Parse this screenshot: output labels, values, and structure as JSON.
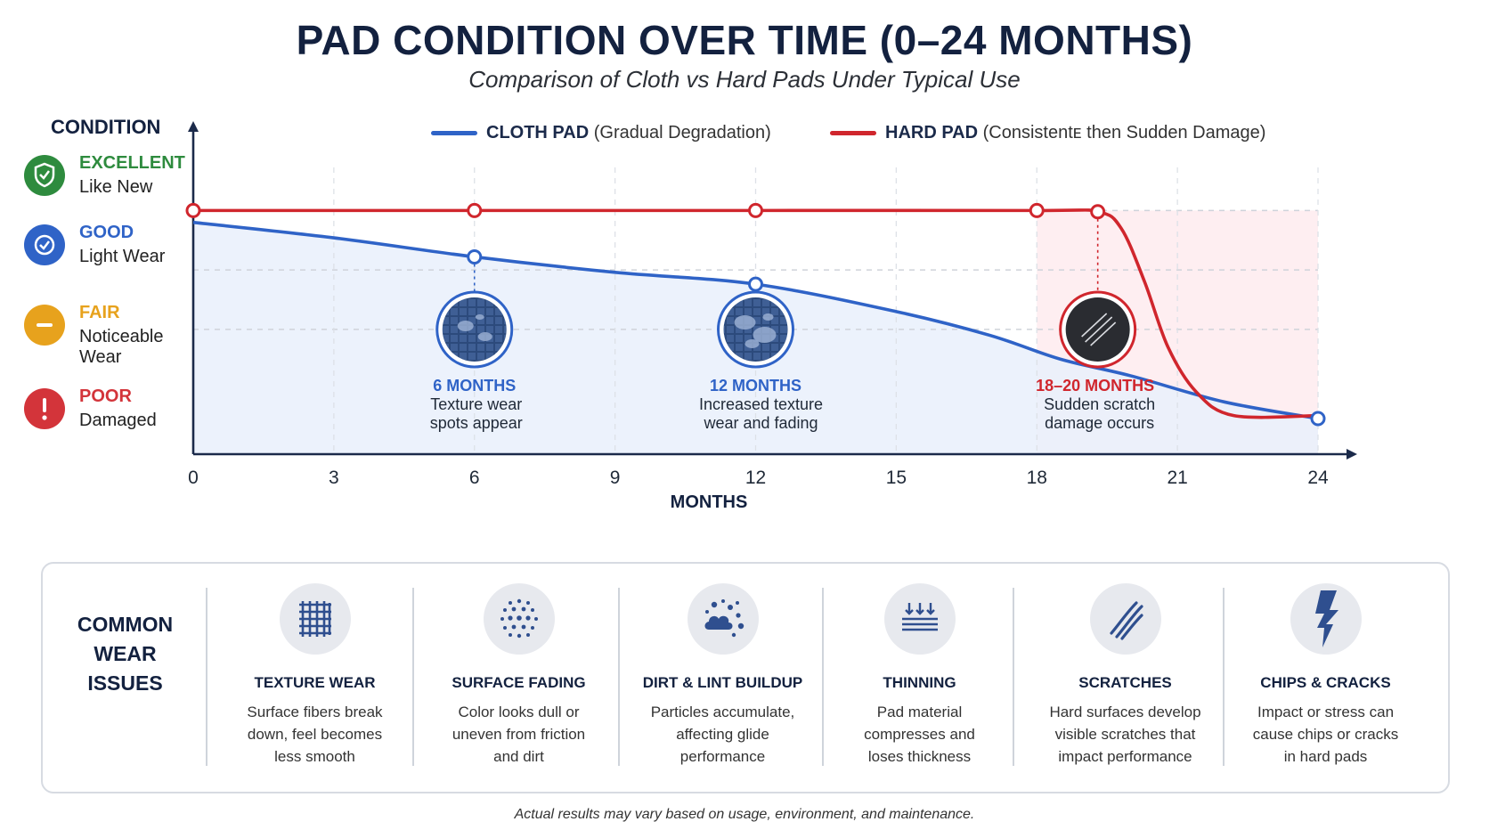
{
  "title": "PAD CONDITION OVER TIME (0–24 MONTHS)",
  "subtitle": "Comparison of Cloth vs Hard Pads Under Typical Use",
  "condition_scale": {
    "heading": "CONDITION",
    "levels": [
      {
        "level": "EXCELLENT",
        "desc": "Like New",
        "color": "#2e8b3e",
        "icon": "shield-check-icon"
      },
      {
        "level": "GOOD",
        "desc": "Light Wear",
        "color": "#2f63c7",
        "icon": "check-circle-icon"
      },
      {
        "level": "FAIR",
        "desc": "Noticeable Wear",
        "color": "#e7a21d",
        "icon": "minus-circle-icon"
      },
      {
        "level": "POOR",
        "desc": "Damaged",
        "color": "#d3343a",
        "icon": "exclamation-circle-icon"
      }
    ]
  },
  "legend": {
    "cloth_name": "CLOTH PAD",
    "cloth_note": "(Gradual Degradation)",
    "hard_name": "HARD PAD",
    "hard_note": "(Consistentᴇ then Sudden Damage)"
  },
  "chart_data": {
    "type": "line",
    "xlabel": "MONTHS",
    "xlim": [
      0,
      24
    ],
    "x_ticks": [
      0,
      3,
      6,
      9,
      12,
      15,
      18,
      21,
      24
    ],
    "ylim": [
      0,
      4
    ],
    "y_categories": [
      "POOR",
      "FAIR",
      "GOOD",
      "EXCELLENT"
    ],
    "grid": true,
    "series": [
      {
        "name": "CLOTH PAD",
        "color": "#2f63c7",
        "x": [
          0,
          3,
          6,
          9,
          12,
          15,
          17,
          18.5,
          20,
          22,
          24
        ],
        "y": [
          3.3,
          3.04,
          2.72,
          2.46,
          2.26,
          1.8,
          1.4,
          1.0,
          0.72,
          0.28,
          0.0
        ],
        "markers_at": [
          6,
          12,
          24
        ]
      },
      {
        "name": "HARD PAD",
        "color": "#d0262d",
        "x": [
          0,
          6,
          12,
          18,
          19.3,
          19.8,
          20.3,
          20.8,
          21.4,
          22.2,
          24
        ],
        "y": [
          3.5,
          3.5,
          3.5,
          3.5,
          3.48,
          3.2,
          2.3,
          1.2,
          0.45,
          0.05,
          0.05
        ],
        "markers_at": [
          0,
          6,
          12,
          18,
          19.3
        ]
      }
    ],
    "annotations": [
      {
        "x": 6,
        "title": "6 MONTHS",
        "line1": "Texture wear",
        "line2": "spots appear",
        "color": "#2f63c7"
      },
      {
        "x": 12,
        "title": "12 MONTHS",
        "line1": "Increased texture",
        "line2": "wear and fading",
        "color": "#2f63c7"
      },
      {
        "x": 19.3,
        "title": "18–20 MONTHS",
        "line1": "Sudden scratch",
        "line2": "damage occurs",
        "color": "#d0262d"
      }
    ],
    "highlight_range": [
      18,
      24
    ]
  },
  "wear_issues": {
    "heading_lines": [
      "COMMON",
      "WEAR",
      "ISSUES"
    ],
    "items": [
      {
        "title": "TEXTURE WEAR",
        "lines": [
          "Surface fibers break",
          "down, feel becomes",
          "less smooth"
        ],
        "icon": "grid-weave-icon"
      },
      {
        "title": "SURFACE FADING",
        "lines": [
          "Color looks dull or",
          "uneven from friction",
          "and dirt"
        ],
        "icon": "dot-fade-icon"
      },
      {
        "title": "DIRT & LINT BUILDUP",
        "lines": [
          "Particles accumulate,",
          "affecting glide",
          "performance"
        ],
        "icon": "dust-cloud-icon"
      },
      {
        "title": "THINNING",
        "lines": [
          "Pad material",
          "compresses and",
          "loses thickness"
        ],
        "icon": "compress-arrows-icon"
      },
      {
        "title": "SCRATCHES",
        "lines": [
          "Hard surfaces develop",
          "visible scratches that",
          "impact performance"
        ],
        "icon": "scratch-marks-icon"
      },
      {
        "title": "CHIPS & CRACKS",
        "lines": [
          "Impact or stress can",
          "cause chips or cracks",
          "in hard pads"
        ],
        "icon": "crack-bolt-icon"
      }
    ]
  },
  "footnote": "Actual results may vary based on usage, environment, and maintenance."
}
